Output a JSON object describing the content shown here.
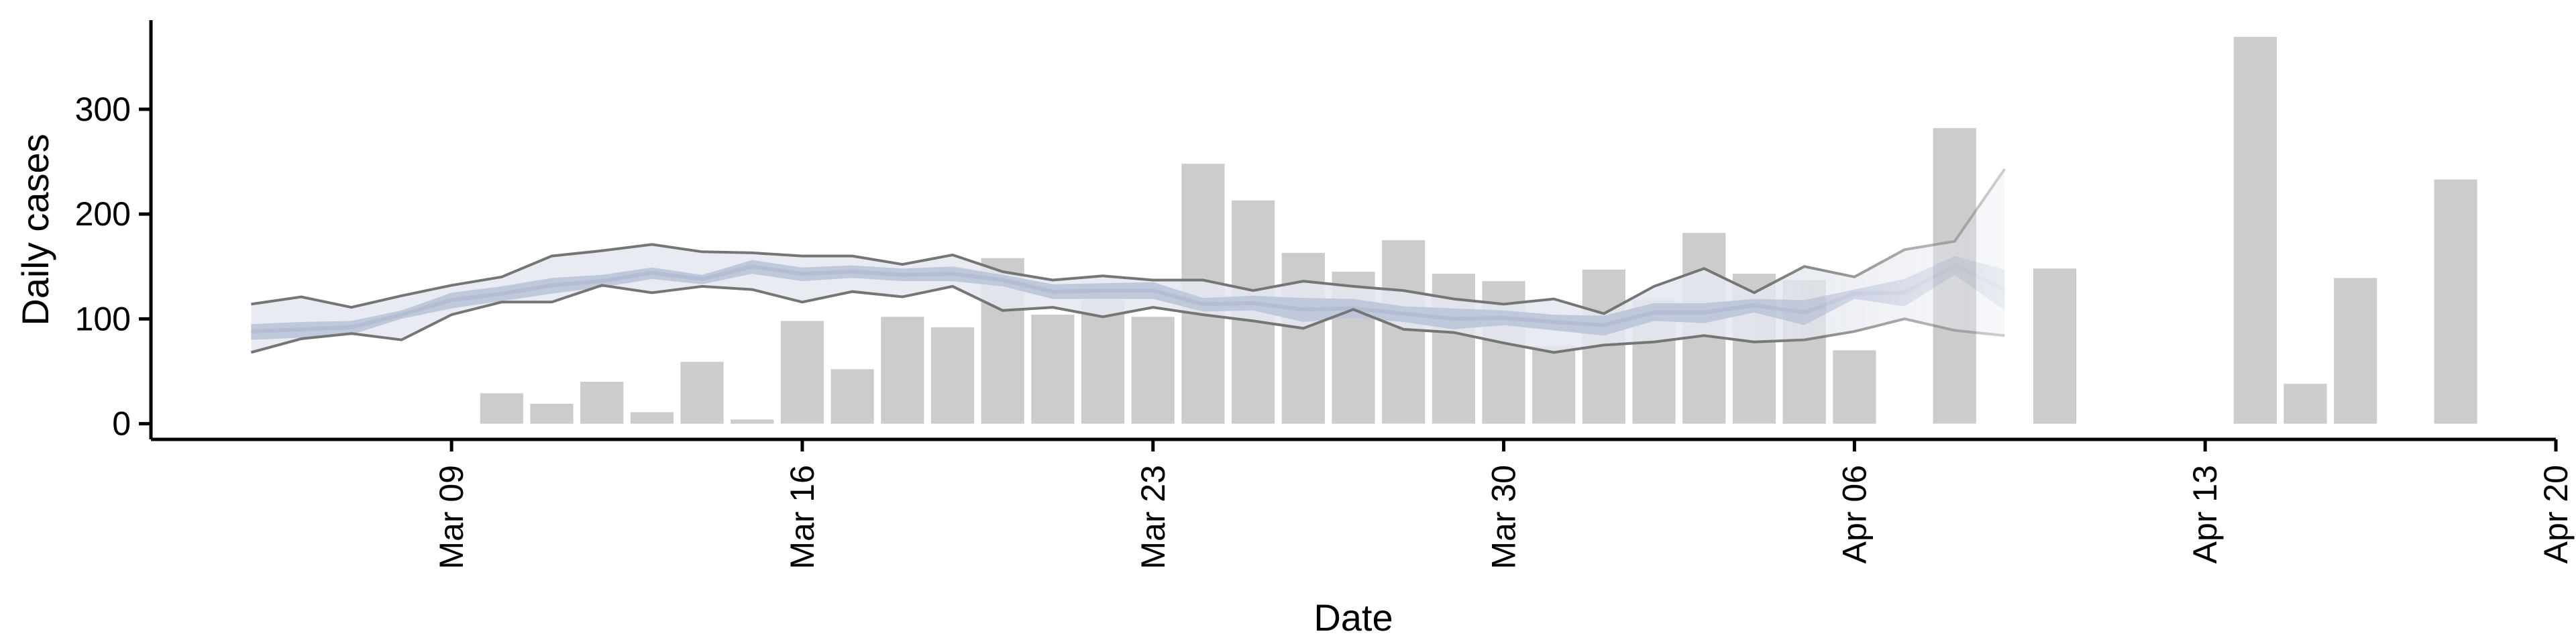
{
  "chart_data": {
    "type": "bar",
    "xlabel": "Date",
    "ylabel": "Daily cases",
    "x_tick_labels": [
      "Mar 09",
      "Mar 16",
      "Mar 23",
      "Mar 30",
      "Apr 06",
      "Apr 13",
      "Apr 20"
    ],
    "x_tick_dates": [
      "2020-03-09",
      "2020-03-16",
      "2020-03-23",
      "2020-03-30",
      "2020-04-06",
      "2020-04-13",
      "2020-04-20"
    ],
    "y_tick_labels": [
      "0",
      "100",
      "200",
      "300"
    ],
    "y_tick_values": [
      0,
      100,
      200,
      300
    ],
    "xlim": [
      "2020-03-03",
      "2020-04-20"
    ],
    "ylim": [
      -15,
      385
    ],
    "grid": false,
    "colors": {
      "bars": "#cccccc",
      "band": "#bdc4d9",
      "band_inner": "#e4e7ef",
      "median_line": "#b4bdd4",
      "bound_lines": "#757575",
      "axis": "#000000"
    },
    "bars": {
      "dates": [
        "2020-03-10",
        "2020-03-11",
        "2020-03-12",
        "2020-03-13",
        "2020-03-14",
        "2020-03-15",
        "2020-03-16",
        "2020-03-17",
        "2020-03-18",
        "2020-03-19",
        "2020-03-20",
        "2020-03-21",
        "2020-03-22",
        "2020-03-23",
        "2020-03-24",
        "2020-03-25",
        "2020-03-26",
        "2020-03-27",
        "2020-03-28",
        "2020-03-29",
        "2020-03-30",
        "2020-03-31",
        "2020-04-01",
        "2020-04-02",
        "2020-04-03",
        "2020-04-04",
        "2020-04-05",
        "2020-04-06",
        "2020-04-08",
        "2020-04-10",
        "2020-04-14",
        "2020-04-15",
        "2020-04-16",
        "2020-04-18"
      ],
      "values": [
        29,
        19,
        40,
        11,
        59,
        4,
        98,
        52,
        102,
        92,
        158,
        104,
        118,
        102,
        248,
        213,
        163,
        145,
        175,
        143,
        136,
        74,
        147,
        118,
        182,
        143,
        137,
        70,
        282,
        148,
        369,
        38,
        139,
        233
      ]
    },
    "forecast": {
      "dates": [
        "2020-03-05",
        "2020-03-06",
        "2020-03-07",
        "2020-03-08",
        "2020-03-09",
        "2020-03-10",
        "2020-03-11",
        "2020-03-12",
        "2020-03-13",
        "2020-03-14",
        "2020-03-15",
        "2020-03-16",
        "2020-03-17",
        "2020-03-18",
        "2020-03-19",
        "2020-03-20",
        "2020-03-21",
        "2020-03-22",
        "2020-03-23",
        "2020-03-24",
        "2020-03-25",
        "2020-03-26",
        "2020-03-27",
        "2020-03-28",
        "2020-03-29",
        "2020-03-30",
        "2020-03-31",
        "2020-04-01",
        "2020-04-02",
        "2020-04-03",
        "2020-04-04",
        "2020-04-05",
        "2020-04-06",
        "2020-04-07",
        "2020-04-08",
        "2020-04-09"
      ],
      "upper": [
        114,
        121,
        111,
        122,
        132,
        140,
        160,
        165,
        171,
        164,
        163,
        160,
        160,
        152,
        161,
        145,
        137,
        141,
        137,
        137,
        127,
        136,
        131,
        127,
        119,
        114,
        119,
        105,
        131,
        148,
        125,
        150,
        140,
        166,
        174,
        243
      ],
      "lower": [
        68,
        81,
        86,
        80,
        104,
        116,
        116,
        132,
        125,
        131,
        128,
        116,
        126,
        121,
        131,
        108,
        111,
        102,
        111,
        104,
        98,
        91,
        109,
        90,
        87,
        77,
        68,
        75,
        78,
        84,
        78,
        80,
        88,
        100,
        89,
        84
      ],
      "band_high": [
        95,
        97,
        98,
        108,
        125,
        131,
        139,
        142,
        149,
        142,
        156,
        149,
        151,
        148,
        150,
        142,
        133,
        134,
        135,
        120,
        122,
        120,
        119,
        112,
        110,
        108,
        104,
        103,
        115,
        115,
        119,
        118,
        128,
        138,
        160,
        147
      ],
      "band_low": [
        80,
        82,
        85,
        100,
        110,
        117,
        124,
        130,
        138,
        133,
        143,
        136,
        139,
        136,
        136,
        131,
        119,
        119,
        119,
        107,
        108,
        97,
        101,
        97,
        90,
        94,
        89,
        84,
        98,
        96,
        106,
        94,
        119,
        112,
        142,
        108
      ],
      "median": [
        88,
        90,
        92,
        104,
        118,
        124,
        132,
        136,
        144,
        138,
        150,
        143,
        145,
        142,
        143,
        137,
        126,
        127,
        127,
        114,
        115,
        109,
        110,
        105,
        100,
        101,
        97,
        94,
        106,
        106,
        113,
        106,
        124,
        125,
        151,
        128
      ]
    }
  }
}
